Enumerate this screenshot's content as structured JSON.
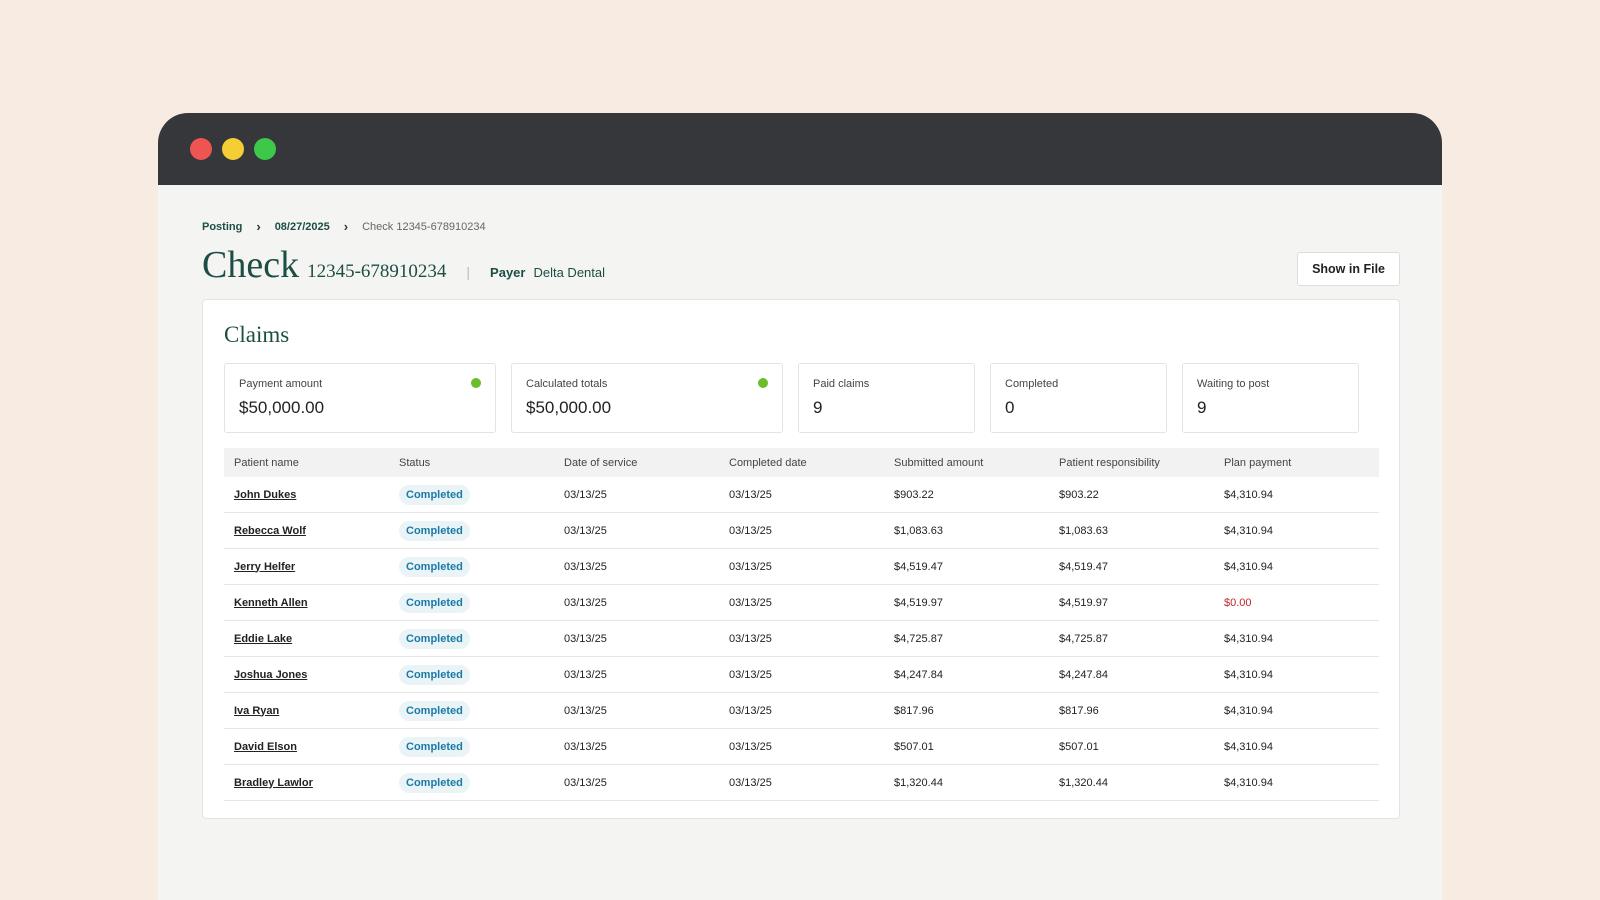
{
  "breadcrumb": [
    "Posting",
    "08/27/2025",
    "Check 12345-678910234"
  ],
  "header": {
    "title": "Check",
    "check_number": "12345-678910234",
    "payer_label": "Payer",
    "payer": "Delta Dental",
    "button": "Show in File"
  },
  "claims": {
    "title": "Claims",
    "stats": [
      {
        "label": "Payment amount",
        "value": "$50,000.00",
        "verified": true
      },
      {
        "label": "Calculated totals",
        "value": "$50,000.00",
        "verified": true
      },
      {
        "label": "Paid claims",
        "value": "9"
      },
      {
        "label": "Completed",
        "value": "0"
      },
      {
        "label": "Waiting to post",
        "value": "9"
      }
    ],
    "table": {
      "columns": [
        "Patient name",
        "Status",
        "Date of service",
        "Completed date",
        "Submitted amount",
        "Patient responsibility",
        "Plan payment"
      ],
      "rows": [
        [
          "John Dukes",
          "Completed",
          "03/13/25",
          "03/13/25",
          "$903.22",
          "$903.22",
          "$4,310.94"
        ],
        [
          "Rebecca Wolf",
          "Completed",
          "03/13/25",
          "03/13/25",
          "$1,083.63",
          "$1,083.63",
          "$4,310.94"
        ],
        [
          "Jerry Helfer",
          "Completed",
          "03/13/25",
          "03/13/25",
          "$4,519.47",
          "$4,519.47",
          "$4,310.94"
        ],
        [
          "Kenneth Allen",
          "Completed",
          "03/13/25",
          "03/13/25",
          "$4,519.97",
          "$4,519.97",
          "$0.00"
        ],
        [
          "Eddie Lake",
          "Completed",
          "03/13/25",
          "03/13/25",
          "$4,725.87",
          "$4,725.87",
          "$4,310.94"
        ],
        [
          "Joshua Jones",
          "Completed",
          "03/13/25",
          "03/13/25",
          "$4,247.84",
          "$4,247.84",
          "$4,310.94"
        ],
        [
          "Iva Ryan",
          "Completed",
          "03/13/25",
          "03/13/25",
          "$817.96",
          "$817.96",
          "$4,310.94"
        ],
        [
          "David Elson",
          "Completed",
          "03/13/25",
          "03/13/25",
          "$507.01",
          "$507.01",
          "$4,310.94"
        ],
        [
          "Bradley Lawlor",
          "Completed",
          "03/13/25",
          "03/13/25",
          "$1,320.44",
          "$1,320.44",
          "$4,310.94"
        ]
      ]
    }
  }
}
